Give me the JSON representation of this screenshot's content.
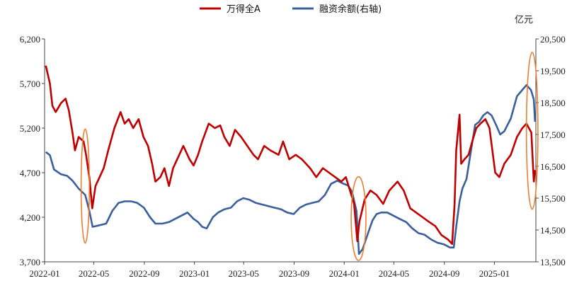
{
  "chart_data": {
    "type": "line",
    "unit_right": "亿元",
    "x_ticks": [
      "2022-01",
      "2022-05",
      "2022-09",
      "2023-01",
      "2023-05",
      "2023-09",
      "2024-01",
      "2024-05",
      "2024-09",
      "2025-01"
    ],
    "y_left": {
      "min": 3700,
      "max": 6200,
      "ticks": [
        "3,700",
        "4,200",
        "4,700",
        "5,200",
        "5,700",
        "6,200"
      ]
    },
    "y_right": {
      "min": 13500,
      "max": 20500,
      "ticks": [
        "13,500",
        "14,500",
        "15,500",
        "16,500",
        "17,500",
        "18,500",
        "19,500",
        "20,500"
      ]
    },
    "series": [
      {
        "name": "万得全A",
        "axis": "left",
        "color": "#c00000",
        "points": [
          [
            "2022-01-04",
            5900
          ],
          [
            "2022-01-14",
            5700
          ],
          [
            "2022-01-20",
            5450
          ],
          [
            "2022-01-28",
            5380
          ],
          [
            "2022-02-10",
            5480
          ],
          [
            "2022-02-21",
            5530
          ],
          [
            "2022-03-01",
            5400
          ],
          [
            "2022-03-10",
            5150
          ],
          [
            "2022-03-16",
            4950
          ],
          [
            "2022-03-25",
            5100
          ],
          [
            "2022-04-06",
            5050
          ],
          [
            "2022-04-12",
            4900
          ],
          [
            "2022-04-20",
            4650
          ],
          [
            "2022-04-27",
            4300
          ],
          [
            "2022-05-05",
            4550
          ],
          [
            "2022-05-15",
            4650
          ],
          [
            "2022-05-25",
            4750
          ],
          [
            "2022-06-05",
            4950
          ],
          [
            "2022-06-20",
            5200
          ],
          [
            "2022-07-05",
            5380
          ],
          [
            "2022-07-15",
            5250
          ],
          [
            "2022-07-25",
            5300
          ],
          [
            "2022-08-05",
            5200
          ],
          [
            "2022-08-18",
            5300
          ],
          [
            "2022-08-30",
            5100
          ],
          [
            "2022-09-10",
            5000
          ],
          [
            "2022-09-20",
            4800
          ],
          [
            "2022-09-28",
            4600
          ],
          [
            "2022-10-10",
            4650
          ],
          [
            "2022-10-20",
            4750
          ],
          [
            "2022-10-31",
            4550
          ],
          [
            "2022-11-10",
            4750
          ],
          [
            "2022-11-25",
            4900
          ],
          [
            "2022-12-05",
            5000
          ],
          [
            "2022-12-20",
            4850
          ],
          [
            "2022-12-30",
            4780
          ],
          [
            "2023-01-10",
            4900
          ],
          [
            "2023-01-20",
            5050
          ],
          [
            "2023-02-05",
            5250
          ],
          [
            "2023-02-20",
            5200
          ],
          [
            "2023-03-05",
            5230
          ],
          [
            "2023-03-15",
            5100
          ],
          [
            "2023-03-28",
            5000
          ],
          [
            "2023-04-10",
            5180
          ],
          [
            "2023-04-25",
            5100
          ],
          [
            "2023-05-10",
            5000
          ],
          [
            "2023-05-25",
            4900
          ],
          [
            "2023-06-05",
            4850
          ],
          [
            "2023-06-20",
            5000
          ],
          [
            "2023-07-05",
            4950
          ],
          [
            "2023-07-25",
            4900
          ],
          [
            "2023-08-05",
            5050
          ],
          [
            "2023-08-20",
            4850
          ],
          [
            "2023-09-05",
            4900
          ],
          [
            "2023-09-20",
            4850
          ],
          [
            "2023-10-10",
            4750
          ],
          [
            "2023-10-25",
            4650
          ],
          [
            "2023-11-10",
            4750
          ],
          [
            "2023-11-25",
            4700
          ],
          [
            "2023-12-10",
            4650
          ],
          [
            "2023-12-25",
            4600
          ],
          [
            "2024-01-05",
            4650
          ],
          [
            "2024-01-15",
            4500
          ],
          [
            "2024-01-25",
            4350
          ],
          [
            "2024-02-02",
            3930
          ],
          [
            "2024-02-07",
            4150
          ],
          [
            "2024-02-20",
            4400
          ],
          [
            "2024-03-05",
            4500
          ],
          [
            "2024-03-20",
            4450
          ],
          [
            "2024-04-05",
            4350
          ],
          [
            "2024-04-20",
            4500
          ],
          [
            "2024-05-10",
            4600
          ],
          [
            "2024-05-25",
            4500
          ],
          [
            "2024-06-10",
            4300
          ],
          [
            "2024-06-25",
            4250
          ],
          [
            "2024-07-10",
            4200
          ],
          [
            "2024-07-25",
            4150
          ],
          [
            "2024-08-10",
            4100
          ],
          [
            "2024-08-25",
            4000
          ],
          [
            "2024-09-10",
            3950
          ],
          [
            "2024-09-20",
            3900
          ],
          [
            "2024-09-26",
            4350
          ],
          [
            "2024-09-30",
            4950
          ],
          [
            "2024-10-08",
            5350
          ],
          [
            "2024-10-12",
            4800
          ],
          [
            "2024-10-20",
            4850
          ],
          [
            "2024-10-30",
            4900
          ],
          [
            "2024-11-08",
            5050
          ],
          [
            "2024-11-18",
            5200
          ],
          [
            "2024-11-28",
            5250
          ],
          [
            "2024-12-10",
            5300
          ],
          [
            "2024-12-20",
            5200
          ],
          [
            "2025-01-03",
            4700
          ],
          [
            "2025-01-13",
            4650
          ],
          [
            "2025-01-25",
            4800
          ],
          [
            "2025-02-10",
            4900
          ],
          [
            "2025-02-25",
            5100
          ],
          [
            "2025-03-10",
            5200
          ],
          [
            "2025-03-20",
            5250
          ],
          [
            "2025-04-01",
            5150
          ],
          [
            "2025-04-07",
            4600
          ],
          [
            "2025-04-10",
            4730
          ]
        ]
      },
      {
        "name": "融资余额(右轴)",
        "axis": "right",
        "color": "#3a5f9a",
        "points": [
          [
            "2022-01-04",
            16950
          ],
          [
            "2022-01-14",
            16850
          ],
          [
            "2022-01-24",
            16400
          ],
          [
            "2022-02-10",
            16250
          ],
          [
            "2022-02-25",
            16200
          ],
          [
            "2022-03-10",
            16050
          ],
          [
            "2022-03-25",
            15800
          ],
          [
            "2022-04-10",
            15600
          ],
          [
            "2022-04-20",
            15100
          ],
          [
            "2022-04-28",
            14600
          ],
          [
            "2022-05-15",
            14650
          ],
          [
            "2022-05-31",
            14700
          ],
          [
            "2022-06-15",
            15100
          ],
          [
            "2022-06-30",
            15350
          ],
          [
            "2022-07-15",
            15400
          ],
          [
            "2022-07-31",
            15400
          ],
          [
            "2022-08-15",
            15350
          ],
          [
            "2022-08-31",
            15200
          ],
          [
            "2022-09-15",
            14900
          ],
          [
            "2022-09-28",
            14700
          ],
          [
            "2022-10-15",
            14700
          ],
          [
            "2022-10-31",
            14750
          ],
          [
            "2022-11-15",
            14850
          ],
          [
            "2022-11-30",
            14950
          ],
          [
            "2022-12-15",
            15050
          ],
          [
            "2022-12-30",
            14850
          ],
          [
            "2023-01-10",
            14750
          ],
          [
            "2023-01-20",
            14600
          ],
          [
            "2023-01-31",
            14550
          ],
          [
            "2023-02-15",
            14900
          ],
          [
            "2023-02-28",
            15050
          ],
          [
            "2023-03-15",
            15150
          ],
          [
            "2023-03-31",
            15200
          ],
          [
            "2023-04-15",
            15400
          ],
          [
            "2023-04-30",
            15500
          ],
          [
            "2023-05-15",
            15450
          ],
          [
            "2023-05-31",
            15350
          ],
          [
            "2023-06-15",
            15300
          ],
          [
            "2023-06-30",
            15250
          ],
          [
            "2023-07-15",
            15200
          ],
          [
            "2023-07-31",
            15150
          ],
          [
            "2023-08-15",
            15050
          ],
          [
            "2023-08-31",
            15000
          ],
          [
            "2023-09-15",
            15200
          ],
          [
            "2023-09-30",
            15300
          ],
          [
            "2023-10-15",
            15350
          ],
          [
            "2023-10-31",
            15400
          ],
          [
            "2023-11-15",
            15600
          ],
          [
            "2023-11-30",
            15950
          ],
          [
            "2023-12-15",
            16050
          ],
          [
            "2023-12-31",
            15950
          ],
          [
            "2024-01-10",
            15900
          ],
          [
            "2024-01-20",
            15700
          ],
          [
            "2024-01-31",
            15100
          ],
          [
            "2024-02-06",
            13750
          ],
          [
            "2024-02-15",
            13900
          ],
          [
            "2024-02-28",
            14400
          ],
          [
            "2024-03-10",
            14800
          ],
          [
            "2024-03-20",
            15000
          ],
          [
            "2024-03-31",
            15050
          ],
          [
            "2024-04-15",
            15050
          ],
          [
            "2024-04-30",
            14950
          ],
          [
            "2024-05-15",
            14850
          ],
          [
            "2024-05-31",
            14750
          ],
          [
            "2024-06-15",
            14550
          ],
          [
            "2024-06-30",
            14400
          ],
          [
            "2024-07-15",
            14350
          ],
          [
            "2024-07-31",
            14200
          ],
          [
            "2024-08-15",
            14100
          ],
          [
            "2024-08-31",
            14050
          ],
          [
            "2024-09-15",
            13950
          ],
          [
            "2024-09-24",
            13950
          ],
          [
            "2024-09-30",
            14600
          ],
          [
            "2024-10-08",
            15400
          ],
          [
            "2024-10-15",
            15800
          ],
          [
            "2024-10-25",
            16100
          ],
          [
            "2024-11-05",
            17000
          ],
          [
            "2024-11-15",
            17800
          ],
          [
            "2024-11-25",
            17900
          ],
          [
            "2024-12-05",
            18100
          ],
          [
            "2024-12-15",
            18200
          ],
          [
            "2024-12-25",
            18100
          ],
          [
            "2025-01-05",
            17800
          ],
          [
            "2025-01-15",
            17500
          ],
          [
            "2025-01-25",
            17600
          ],
          [
            "2025-02-10",
            18000
          ],
          [
            "2025-02-25",
            18700
          ],
          [
            "2025-03-10",
            18900
          ],
          [
            "2025-03-20",
            19050
          ],
          [
            "2025-03-31",
            18900
          ],
          [
            "2025-04-07",
            18600
          ],
          [
            "2025-04-10",
            17900
          ]
        ]
      }
    ],
    "annotations": [
      {
        "shape": "ellipse",
        "cx": "2022-04-10",
        "y_left": 4550,
        "rx_days": 10,
        "ry_left": 640,
        "color": "#ed7d31"
      },
      {
        "shape": "ellipse",
        "cx": "2024-02-05",
        "y_left": 4185,
        "rx_days": 18,
        "ry_left": 470,
        "color": "#ed7d31"
      },
      {
        "shape": "ellipse",
        "cx": "2025-04-03",
        "y_left": 5170,
        "rx_days": 14,
        "ry_left": 880,
        "color": "#ed7d31"
      }
    ]
  }
}
